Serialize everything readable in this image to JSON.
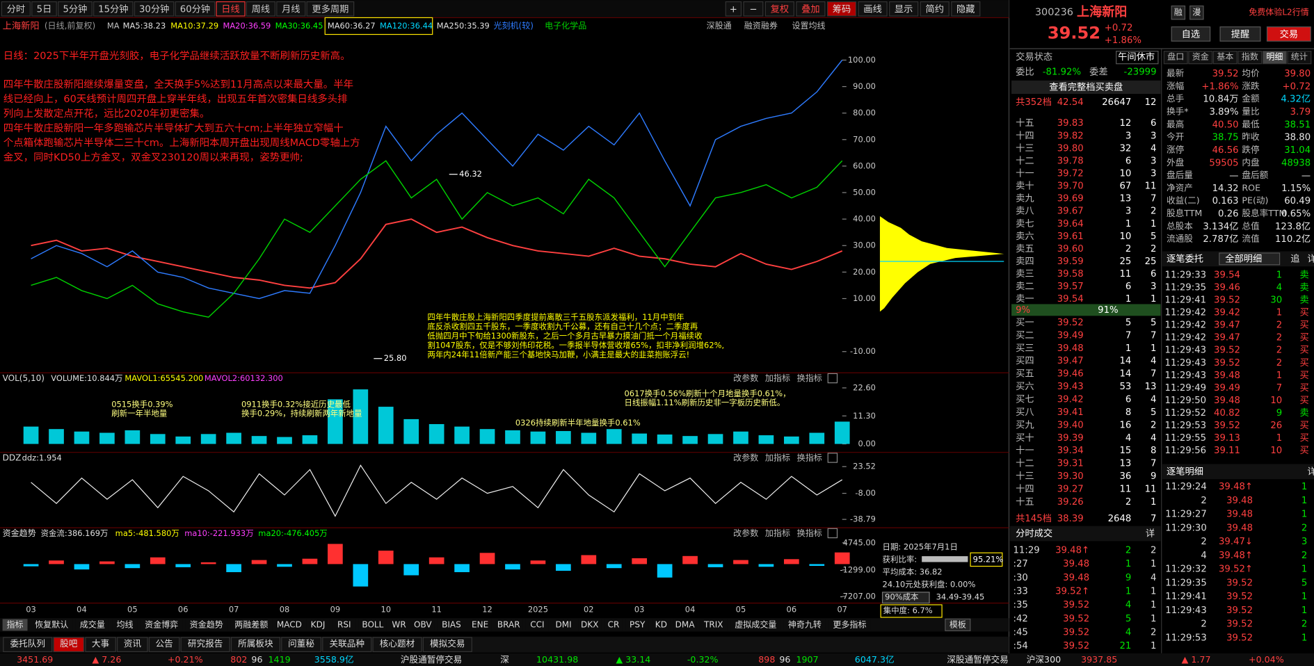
{
  "toolbar": {
    "periods": [
      "分时",
      "5日",
      "5分钟",
      "15分钟",
      "30分钟",
      "60分钟",
      "日线",
      "周线",
      "月线",
      "更多周期"
    ],
    "active_period": 6,
    "tools": [
      "+",
      "−",
      "复权",
      "叠加",
      "筹码",
      "画线",
      "显示",
      "简约",
      "隐藏"
    ]
  },
  "chart_data": [
    {
      "type": "line",
      "title": "上海新阳",
      "subtitle": "(日线,前复权)",
      "indicators": [
        {
          "text": "MA",
          "color": "#c0c0c0"
        },
        {
          "text": "MA5:38.23",
          "color": "#e0e0e0"
        },
        {
          "text": "MA10:37.29",
          "color": "#ffff00"
        },
        {
          "text": "MA20:36.59",
          "color": "#ff40ff"
        },
        {
          "text": "MA30:36.45",
          "color": "#00ff00"
        },
        {
          "text": "MA60:36.27",
          "color": "#e0e0e0"
        },
        {
          "text": "MA120:36.44",
          "color": "#00d8ff"
        },
        {
          "text": "MA250:35.39",
          "color": "#e0e0e0"
        }
      ],
      "tools": [
        "深股通",
        "融资融券",
        "设置均线"
      ],
      "categories": [
        "03",
        null,
        "04",
        null,
        "05",
        null,
        "06",
        null,
        "07",
        null,
        "08",
        null,
        "09",
        null,
        "10",
        null,
        "11",
        null,
        "12",
        null,
        "2025",
        null,
        "02",
        null,
        "03",
        null,
        "04",
        null,
        "05",
        null,
        "06",
        null,
        "07"
      ],
      "series": [
        {
          "name": "上海新阳",
          "color": "#ff4040",
          "values": [
            30,
            32,
            28,
            29,
            26,
            24,
            22,
            20,
            18,
            17,
            15,
            14,
            16,
            25,
            38,
            40,
            35,
            37,
            33,
            30,
            28,
            27,
            26,
            29,
            26,
            25,
            23,
            22,
            27,
            23,
            21,
            24,
            28
          ]
        },
        {
          "name": "光刻机(较)",
          "color": "#2e7bff",
          "values": [
            25,
            30,
            27,
            22,
            28,
            20,
            18,
            14,
            12,
            10,
            13,
            12,
            30,
            50,
            75,
            62,
            72,
            80,
            70,
            60,
            72,
            66,
            75,
            68,
            80,
            62,
            45,
            70,
            75,
            78,
            80,
            88,
            100
          ]
        },
        {
          "name": "电子化学品",
          "color": "#00d000",
          "values": [
            15,
            18,
            13,
            10,
            15,
            8,
            5,
            3,
            12,
            25,
            40,
            35,
            45,
            55,
            62,
            48,
            55,
            40,
            50,
            45,
            48,
            42,
            55,
            48,
            35,
            22,
            35,
            48,
            50,
            53,
            48,
            52,
            62
          ]
        }
      ],
      "ylim": [
        -18,
        110
      ],
      "yticks": [
        {
          "value": 100,
          "label": "100.00"
        },
        {
          "value": 90,
          "label": "90.00"
        },
        {
          "value": 80,
          "label": "80.00"
        },
        {
          "value": 70,
          "label": "70.00"
        },
        {
          "value": 60,
          "label": "60.00"
        },
        {
          "value": 50,
          "label": "50.00"
        },
        {
          "value": 40,
          "label": "40.00"
        },
        {
          "value": 30,
          "label": "30.00"
        },
        {
          "value": 20,
          "label": "20.00"
        },
        {
          "value": 10,
          "label": "10.00"
        },
        {
          "value": -10,
          "label": "-10.00"
        }
      ],
      "price_marks": [
        "46.32",
        "25.80"
      ],
      "notes": [
        {
          "color": "#ff2020",
          "lines": [
            "日线：2025下半年开盘光刻胶，电子化学品继续活跃放量不断刷新历史新高。"
          ]
        },
        {
          "color": "#ff2020",
          "lines": [
            "四年牛散庄股新阳继续爆量变盘，全天换手5%达到11月高点以来最大量。半年",
            "线已经向上，60天线预计周四开盘上穿半年线，出现五年首次密集日线多头排",
            "列向上发散定点开花，远比2020年初更密集。",
            "四年牛散庄股新阳一年多跑输芯片半导体扩大到五六十cm;上半年独立窄幅十",
            "个点箱体跑输芯片半导体二三十cm。上海新阳本周开盘出现周线MACD零轴上方",
            "金叉，同时KD50上方金叉，双金叉230120周以来再现，姿势更帅;"
          ]
        },
        {
          "color": "#ffff00",
          "lines": [
            "四年牛散庄股上海新阳四季度提前离散三千五股东派发福利，11月中到年",
            "底反杀收割四五千股东，一季度收割九千公募，还有自己十几个点；二季度再",
            "低抛四月中下旬给1300新股东，之后一个多月古早暴力摸油门抵一个月福续收",
            "割1047股东，仅是不够刘伟印花税。一季报半导体营收增65%，扣非净利润增62%,",
            "两年内24年11倍新产能三个基地快马加鞭，小满主是最大的韭菜抱账浮云!"
          ]
        }
      ]
    },
    {
      "type": "bar",
      "title": "VOL(5,10)",
      "indicators": [
        {
          "text": "VOLUME:10.844万",
          "color": "#e0e0e0"
        },
        {
          "text": "MAVOL1:65545.200",
          "color": "#ffff00"
        },
        {
          "text": "MAVOL2:60132.300",
          "color": "#ff40ff"
        }
      ],
      "buttons": [
        "改参数",
        "加指标",
        "换指标"
      ],
      "values": [
        7,
        6,
        5,
        4.5,
        5.5,
        4,
        3,
        4,
        4.5,
        3.2,
        2.8,
        3.5,
        18,
        22,
        15,
        10,
        8,
        7,
        6,
        5.5,
        5,
        5.2,
        4.5,
        6,
        4.2,
        3.8,
        3.2,
        4,
        5,
        3.5,
        3,
        4.5,
        9
      ],
      "color": "#00c8d8",
      "ylim": [
        -1.7,
        24.3
      ],
      "yticks": [
        {
          "value": 22.6,
          "label": "22.60"
        },
        {
          "value": 11.3,
          "label": "11.30"
        },
        {
          "value": 0,
          "label": "0.00"
        }
      ],
      "notes": [
        "0515换手0.39%",
        "刷新一年半地量",
        "0911换手0.32%接近历史最低",
        "换手0.29%，持续刷新两年新地量",
        "0326持续刷新半年地量换手0.61%",
        "0617换手0.56%刷新十个月地量换手0.61%，",
        "日线振幅1.11%刷新历史非一字板历史新低。"
      ]
    },
    {
      "type": "line",
      "title": "DDZ",
      "indicators": [
        {
          "text": "ddz:1.954",
          "color": "#e0e0e0"
        }
      ],
      "buttons": [
        "改参数",
        "加指标",
        "换指标"
      ],
      "values": [
        5,
        -20,
        10,
        -15,
        8,
        -25,
        12,
        -5,
        -30,
        15,
        -10,
        20,
        -35,
        25,
        -20,
        5,
        -15,
        10,
        -8,
        0,
        -25,
        20,
        -10,
        -30,
        15,
        -5,
        10,
        -20,
        5,
        -15,
        12,
        -10,
        8
      ],
      "color": "#f0f0f0",
      "ylim": [
        -43.7,
        28.5
      ],
      "yticks": [
        23.52,
        {
          "value": -8,
          "label": "-8.00"
        },
        -38.79
      ]
    },
    {
      "type": "bar",
      "title": "资金趋势",
      "indicators": [
        {
          "text": "资金流:386.169万",
          "color": "#e0e0e0"
        },
        {
          "text": "ma5:-481.580万",
          "color": "#ffff00"
        },
        {
          "text": "ma10:-221.933万",
          "color": "#ff40ff"
        },
        {
          "text": "ma20:-476.405万",
          "color": "#00ff00"
        }
      ],
      "buttons": [
        "改参数",
        "加指标",
        "换指标"
      ],
      "values": [
        -500,
        800,
        -1200,
        600,
        -900,
        1500,
        -700,
        400,
        -1800,
        900,
        -600,
        1200,
        4500,
        -5000,
        3000,
        -2500,
        1500,
        -1800,
        2500,
        -1200,
        800,
        -1500,
        2000,
        -900,
        1300,
        -3000,
        1800,
        -700,
        900,
        -600,
        1100,
        -400,
        2600
      ],
      "color": "#ff3030",
      "negative_color": "#00c8ff",
      "ylim": [
        -8330,
        5870
      ],
      "yticks": [
        {
          "value": 4745,
          "label": "4745.00"
        },
        {
          "value": -1299,
          "label": "-1299.00"
        },
        {
          "value": -7207,
          "label": "-7207.00"
        }
      ]
    }
  ],
  "chip": {
    "date": "日期: 2025年7月1日",
    "profit_label": "获利比率:",
    "profit": "95.21%",
    "avg": "平均成本: 36.82",
    "at_price": "24.10元处获利盘: 0.00%",
    "cost_label": "90%成本",
    "cost_range": "34.49-39.45",
    "concentration": "集中度: 6.7%"
  },
  "quote": {
    "code": "300236",
    "badges": [
      "融",
      "漫"
    ],
    "promo": "免费体验L2行情",
    "price": "39.52",
    "change": "+0.72",
    "pct": "+1.86%",
    "buttons": [
      "自选",
      "提醒",
      "交易"
    ],
    "status_label": "交易状态",
    "status": "午间休市",
    "tabs": [
      "盘口",
      "资金",
      "基本",
      "指数",
      "明细",
      "统计"
    ],
    "active_tab": 4,
    "ratio": [
      "委比",
      "-81.92%",
      "委差",
      "-23999"
    ],
    "full_book": "查看完整档买卖盘",
    "sell_total": [
      "共352档",
      "42.54",
      "26647",
      "12"
    ],
    "asks": [
      [
        "十五",
        "39.83",
        "12",
        "6"
      ],
      [
        "十四",
        "39.82",
        "3",
        "3"
      ],
      [
        "十三",
        "39.80",
        "32",
        "4"
      ],
      [
        "十二",
        "39.78",
        "6",
        "3"
      ],
      [
        "十一",
        "39.72",
        "10",
        "3"
      ],
      [
        "卖十",
        "39.70",
        "67",
        "11"
      ],
      [
        "卖九",
        "39.69",
        "13",
        "7"
      ],
      [
        "卖八",
        "39.67",
        "3",
        "2"
      ],
      [
        "卖七",
        "39.64",
        "1",
        "1"
      ],
      [
        "卖六",
        "39.61",
        "10",
        "5"
      ],
      [
        "卖五",
        "39.60",
        "2",
        "2"
      ],
      [
        "卖四",
        "39.59",
        "25",
        "25"
      ],
      [
        "卖三",
        "39.58",
        "11",
        "6"
      ],
      [
        "卖二",
        "39.57",
        "6",
        "3"
      ],
      [
        "卖一",
        "39.54",
        "1",
        "1"
      ]
    ],
    "split": [
      "9%",
      "91%"
    ],
    "bids": [
      [
        "买一",
        "39.52",
        "5",
        "5"
      ],
      [
        "买二",
        "39.49",
        "7",
        "7"
      ],
      [
        "买三",
        "39.48",
        "1",
        "1"
      ],
      [
        "买四",
        "39.47",
        "14",
        "4"
      ],
      [
        "买五",
        "39.46",
        "14",
        "7"
      ],
      [
        "买六",
        "39.43",
        "53",
        "13"
      ],
      [
        "买七",
        "39.42",
        "6",
        "4"
      ],
      [
        "买八",
        "39.41",
        "8",
        "5"
      ],
      [
        "买九",
        "39.40",
        "16",
        "2"
      ],
      [
        "买十",
        "39.39",
        "4",
        "4"
      ],
      [
        "十一",
        "39.34",
        "15",
        "8"
      ],
      [
        "十二",
        "39.31",
        "13",
        "7"
      ],
      [
        "十三",
        "39.30",
        "36",
        "9"
      ],
      [
        "十四",
        "39.27",
        "11",
        "11"
      ],
      [
        "十五",
        "39.26",
        "2",
        "1"
      ]
    ],
    "buy_total": [
      "共145档",
      "38.39",
      "2648",
      "7"
    ],
    "stats": [
      [
        "最新",
        "39.52",
        "r",
        "均价",
        "39.80",
        "r"
      ],
      [
        "涨幅",
        "+1.86%",
        "r",
        "涨跌",
        "+0.72",
        "r"
      ],
      [
        "总手",
        "10.84万",
        "w",
        "金额",
        "4.32亿",
        "c"
      ],
      [
        "换手*",
        "3.89%",
        "w",
        "量比",
        "3.79",
        "r"
      ],
      [
        "最高",
        "40.50",
        "r",
        "最低",
        "38.51",
        "g"
      ],
      [
        "今开",
        "38.75",
        "g",
        "昨收",
        "38.80",
        "w"
      ],
      [
        "涨停",
        "46.56",
        "r",
        "跌停",
        "31.04",
        "g"
      ],
      [
        "外盘",
        "59505",
        "r",
        "内盘",
        "48938",
        "g"
      ],
      [
        "盘后量",
        "—",
        "w",
        "盘后额",
        "—",
        "w"
      ],
      [
        "净资产",
        "14.32",
        "w",
        "ROE",
        "1.15%",
        "w"
      ],
      [
        "收益(二)",
        "0.163",
        "w",
        "PE(动)",
        "60.49",
        "w"
      ],
      [
        "股息TTM",
        "0.26",
        "w",
        "股息率TTM",
        "0.65%",
        "w"
      ],
      [
        "总股本",
        "3.134亿",
        "w",
        "总值",
        "123.8亿",
        "w"
      ],
      [
        "流通股",
        "2.787亿",
        "w",
        "流值",
        "110.2亿",
        "w"
      ]
    ],
    "orders_title": "逐笔委托",
    "orders_filter": "全部明细",
    "orders_tools": [
      "追",
      "详"
    ],
    "orders": [
      [
        "11:29:33",
        "39.54",
        "1",
        "卖"
      ],
      [
        "11:29:35",
        "39.46",
        "4",
        "卖"
      ],
      [
        "11:29:41",
        "39.52",
        "30",
        "卖"
      ],
      [
        "11:29:42",
        "39.42",
        "1",
        "买"
      ],
      [
        "11:29:42",
        "39.47",
        "2",
        "买"
      ],
      [
        "11:29:42",
        "39.47",
        "2",
        "买"
      ],
      [
        "11:29:43",
        "39.52",
        "2",
        "买"
      ],
      [
        "11:29:43",
        "39.52",
        "2",
        "买"
      ],
      [
        "11:29:43",
        "39.48",
        "1",
        "买"
      ],
      [
        "11:29:49",
        "39.49",
        "7",
        "买"
      ],
      [
        "11:29:50",
        "39.48",
        "10",
        "买"
      ],
      [
        "11:29:52",
        "40.82",
        "9",
        "卖"
      ],
      [
        "11:29:53",
        "39.52",
        "26",
        "买"
      ],
      [
        "11:29:55",
        "39.13",
        "1",
        "买"
      ],
      [
        "11:29:56",
        "39.11",
        "10",
        "买"
      ]
    ],
    "ticks_title": "逐笔明细",
    "ticks_tool": "详",
    "ticks": [
      [
        "11:29:24",
        "39.48↑",
        "1"
      ],
      [
        "2",
        "39.48",
        "1"
      ],
      [
        "11:29:27",
        "39.48",
        "1"
      ],
      [
        "11:29:30",
        "39.48",
        "2"
      ],
      [
        "2",
        "39.47↓",
        "3"
      ],
      [
        "4",
        "39.48↑",
        "2"
      ],
      [
        "11:29:32",
        "39.52↑",
        "1"
      ],
      [
        "11:29:35",
        "39.52",
        "5"
      ],
      [
        "11:29:41",
        "39.52",
        "1"
      ],
      [
        "11:29:43",
        "39.52",
        "1"
      ],
      [
        "2",
        "39.52",
        "2"
      ],
      [
        "11:29:53",
        "39.52",
        "1"
      ]
    ],
    "trades_title": "分时成交",
    "trades_tool": "详",
    "trades": [
      [
        "11:29",
        "39.48↑",
        "2",
        "2"
      ],
      [
        ":27",
        "39.48",
        "1",
        "1"
      ],
      [
        ":30",
        "39.48",
        "9",
        "4"
      ],
      [
        ":33",
        "39.52↑",
        "1",
        "1"
      ],
      [
        ":35",
        "39.52",
        "4",
        "1"
      ],
      [
        ":42",
        "39.52",
        "5",
        "1"
      ],
      [
        ":45",
        "39.52",
        "4",
        "2"
      ],
      [
        ":54",
        "39.52",
        "21",
        "1"
      ]
    ]
  },
  "bottom": {
    "indicator_tabs": [
      "指标",
      "恢复默认",
      "成交量",
      "均线",
      "资金博弈",
      "资金趋势",
      "两融差额",
      "MACD",
      "KDJ",
      "RSI",
      "BOLL",
      "WR",
      "OBV",
      "BIAS",
      "ENE",
      "BRAR",
      "CCI",
      "DMI",
      "DKX",
      "CR",
      "PSY",
      "KD",
      "DMA",
      "TRIX",
      "虚拟成交量",
      "神奇九转",
      "更多指标",
      "模板"
    ],
    "page_tabs": [
      "委托队列",
      "股吧",
      "大事",
      "资讯",
      "公告",
      "研究报告",
      "所属板块",
      "问董秘",
      "关联品种",
      "核心题材",
      "模拟交易"
    ],
    "active_page_tab": 1,
    "ticker": [
      [
        "3451.69",
        "#ff4040"
      ],
      [
        "▲ 7.26",
        "#ff4040"
      ],
      [
        "+0.21%",
        "#ff4040"
      ],
      [
        "802",
        "#ff4040"
      ],
      [
        "96",
        "#e0e0e0"
      ],
      [
        "1419",
        "#00e600"
      ],
      [
        "3558.9亿",
        "#00d8ff"
      ],
      [
        "沪股通暂停交易",
        "#e0e0e0"
      ],
      [
        "深",
        "#e0e0e0"
      ],
      [
        "10431.98",
        "#00e600"
      ],
      [
        "▲ 33.14",
        "#00e600"
      ],
      [
        "-0.32%",
        "#00e600"
      ],
      [
        "898",
        "#ff4040"
      ],
      [
        "96",
        "#e0e0e0"
      ],
      [
        "1907",
        "#00e600"
      ],
      [
        "6047.3亿",
        "#00d8ff"
      ],
      [
        "深股通暂停交易",
        "#e0e0e0"
      ],
      [
        "沪深300",
        "#e0e0e0"
      ],
      [
        "3937.85",
        "#ff4040"
      ],
      [
        "▲ 1.77",
        "#ff4040"
      ],
      [
        "+0.04%",
        "#ff4040"
      ]
    ]
  }
}
